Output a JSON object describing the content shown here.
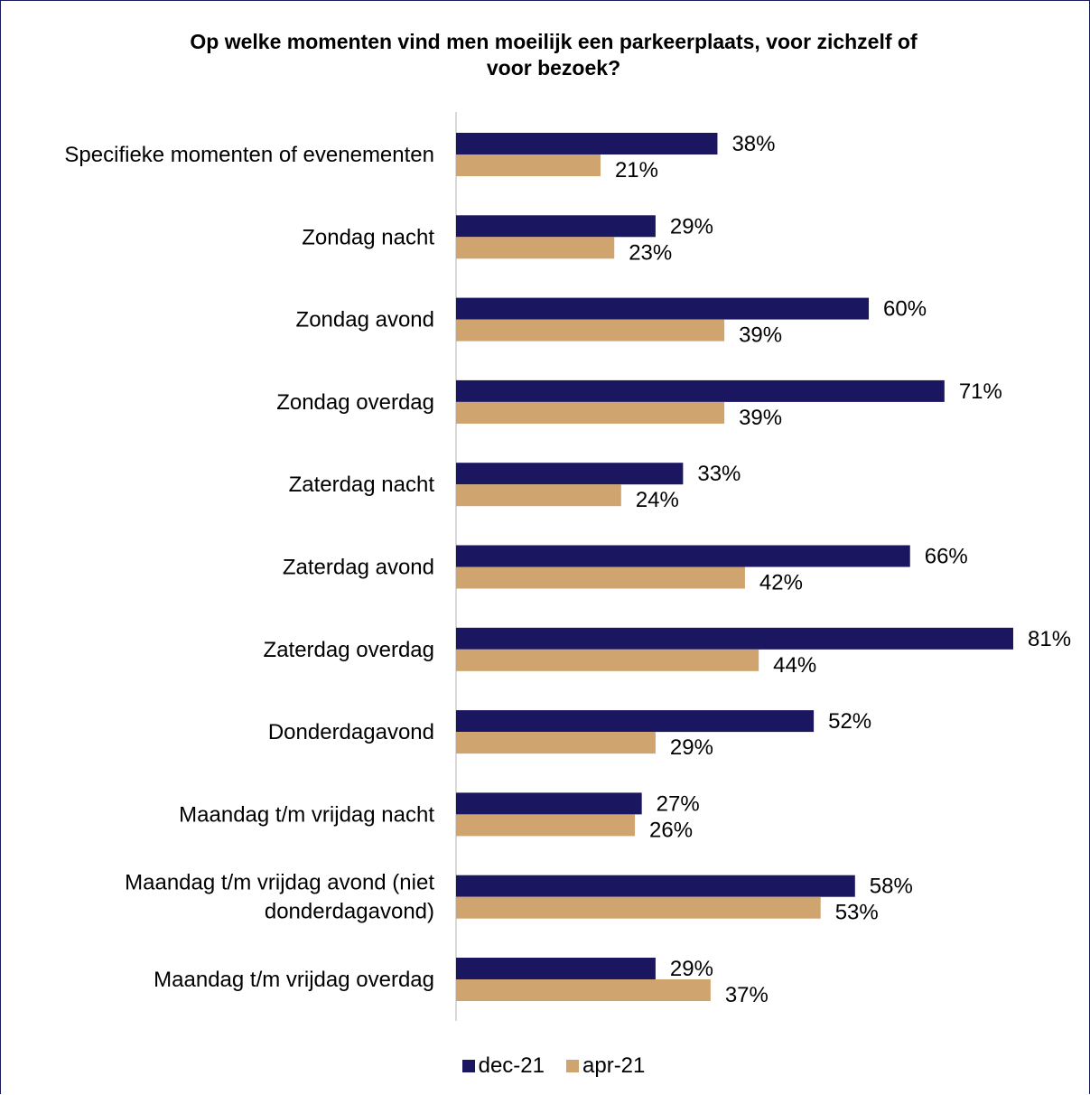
{
  "chart_data": {
    "type": "bar",
    "orientation": "horizontal",
    "title_lines": [
      "Op welke momenten vind men moeilijk een parkeerplaats, voor zichzelf of",
      "voor bezoek?"
    ],
    "categories": [
      [
        "Specifieke momenten of evenementen"
      ],
      [
        "Zondag nacht"
      ],
      [
        "Zondag avond"
      ],
      [
        "Zondag overdag"
      ],
      [
        "Zaterdag nacht"
      ],
      [
        "Zaterdag avond"
      ],
      [
        "Zaterdag overdag"
      ],
      [
        "Donderdagavond"
      ],
      [
        "Maandag t/m vrijdag nacht"
      ],
      [
        "Maandag t/m vrijdag avond (niet",
        "donderdagavond)"
      ],
      [
        "Maandag t/m vrijdag overdag"
      ]
    ],
    "series": [
      {
        "name": "dec-21",
        "color": "#1b1660",
        "values": [
          38,
          29,
          60,
          71,
          33,
          66,
          81,
          52,
          27,
          58,
          29
        ],
        "labels": [
          "38%",
          "29%",
          "60%",
          "71%",
          "33%",
          "66%",
          "81%",
          "52%",
          "27%",
          "58%",
          "29%"
        ]
      },
      {
        "name": "apr-21",
        "color": "#cfa46e",
        "values": [
          21,
          23,
          39,
          39,
          24,
          42,
          44,
          29,
          26,
          53,
          37
        ],
        "labels": [
          "21%",
          "23%",
          "39%",
          "39%",
          "24%",
          "42%",
          "44%",
          "29%",
          "26%",
          "53%",
          "37%"
        ]
      }
    ],
    "xlim": [
      0,
      81
    ],
    "grid": false,
    "legend_position": "bottom"
  }
}
